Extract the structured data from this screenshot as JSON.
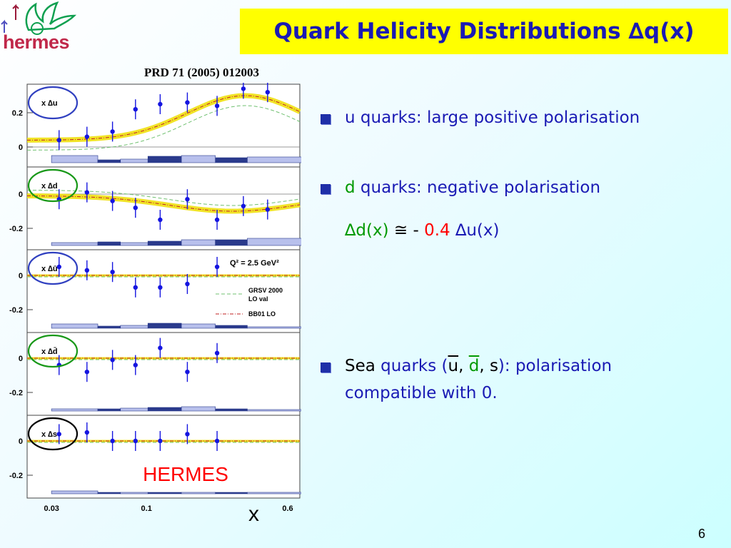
{
  "logo": {
    "text": "hermes"
  },
  "title": "Quark Helicity Distributions ∆q(x)",
  "citation": "PRD 71 (2005) 012003",
  "bullets": {
    "b1": "u quarks: large positive polarisation",
    "b2": "d quarks: negative polarisation",
    "b2_formula": {
      "lhs": "∆d(x)",
      "approx": "≅",
      "minus": "-",
      "coef": "0.4",
      "rhs": "∆u(x)"
    },
    "b3_sea": "Sea",
    "b3_quarks": "quarks (",
    "b3_ubar": "u",
    "b3_comma1": ",",
    "b3_dbar": "d",
    "b3_comma2": ",",
    "b3_s": "s",
    "b3_rest": "): polarisation",
    "b3_line2": "compatible with 0."
  },
  "page_number": "6",
  "colors": {
    "title_bg": "#ffff00",
    "title_text": "#1a1ab4",
    "band": "#f0e010",
    "data": "#1515e0",
    "bins": "#2a3a8c"
  },
  "chart_data": {
    "type": "scatter",
    "xlabel": "x",
    "x_log_scale": true,
    "x_ticks": [
      "0.03",
      "0.1",
      "0.6"
    ],
    "annotation_q2": "Q² = 2.5 GeV²",
    "legend": [
      "GRSV 2000 LO val",
      "BB01 LO"
    ],
    "experiment_label": "HERMES",
    "x": [
      0.033,
      0.047,
      0.065,
      0.087,
      0.119,
      0.168,
      0.245,
      0.342,
      0.465
    ],
    "panels": [
      {
        "label": "x  ∆u",
        "circle": "#3040c0",
        "yticks": [
          "0.2",
          "0"
        ],
        "y": [
          0.04,
          0.06,
          0.09,
          0.22,
          0.25,
          0.26,
          0.24,
          0.34,
          0.32
        ]
      },
      {
        "label": "x  ∆d",
        "circle": "#189818",
        "yticks": [
          "0",
          "-0.2"
        ],
        "y": [
          -0.03,
          0.01,
          -0.04,
          -0.08,
          -0.15,
          -0.03,
          -0.15,
          -0.07,
          -0.09
        ]
      },
      {
        "label": "x  ∆ū",
        "circle": "#3040c0",
        "yticks": [
          "0",
          "-0.2"
        ],
        "y": [
          0.05,
          0.03,
          0.02,
          -0.07,
          -0.07,
          -0.05,
          0.05,
          null,
          null
        ]
      },
      {
        "label": "x  ∆d̄",
        "circle": "#189818",
        "yticks": [
          "0",
          "-0.2"
        ],
        "y": [
          -0.04,
          -0.08,
          -0.01,
          -0.04,
          0.06,
          -0.08,
          0.03,
          null,
          null
        ]
      },
      {
        "label": "x  ∆s",
        "circle": "#000000",
        "yticks": [
          "0",
          "-0.2"
        ],
        "y": [
          0.04,
          0.05,
          0.0,
          0.0,
          0.0,
          0.04,
          0.0,
          null,
          null
        ]
      }
    ]
  }
}
